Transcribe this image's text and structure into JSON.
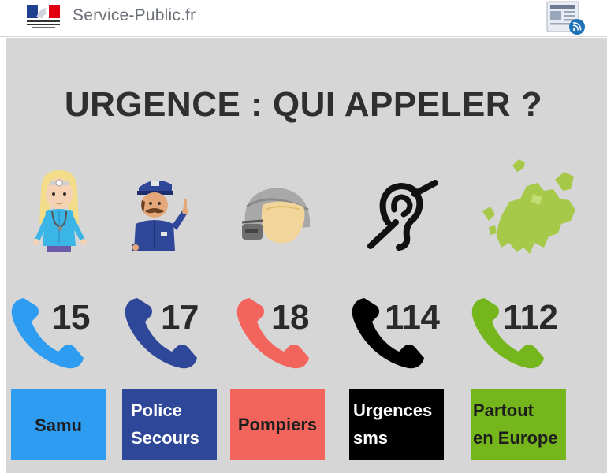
{
  "header": {
    "site_name": "Service-Public.fr",
    "logo_icon": "marianne-logo",
    "rss_icon": "newsfeed-rss-icon"
  },
  "headline": "URGENCE : QUI APPELER ?",
  "services": [
    {
      "icon": "doctor-samu-illustration",
      "number": "15",
      "label_lines": [
        "Samu"
      ],
      "color": "#2e9cf0",
      "label_color": "#1e1e1e"
    },
    {
      "icon": "police-officer-illustration",
      "number": "17",
      "label_lines": [
        "Police",
        "Secours"
      ],
      "color": "#2e4799",
      "label_color": "#ffffff"
    },
    {
      "icon": "firefighter-helmet-illustration",
      "number": "18",
      "label_lines": [
        "Pompiers"
      ],
      "color": "#f2645c",
      "label_color": "#1e1e1e"
    },
    {
      "icon": "hearing-impaired-icon",
      "number": "114",
      "label_lines": [
        "Urgences",
        "sms"
      ],
      "color": "#000000",
      "label_color": "#ffffff"
    },
    {
      "icon": "europe-map-illustration",
      "number": "112",
      "label_lines": [
        "Partout",
        "en Europe"
      ],
      "color": "#75b61c",
      "label_color": "#1e1e1e"
    }
  ]
}
